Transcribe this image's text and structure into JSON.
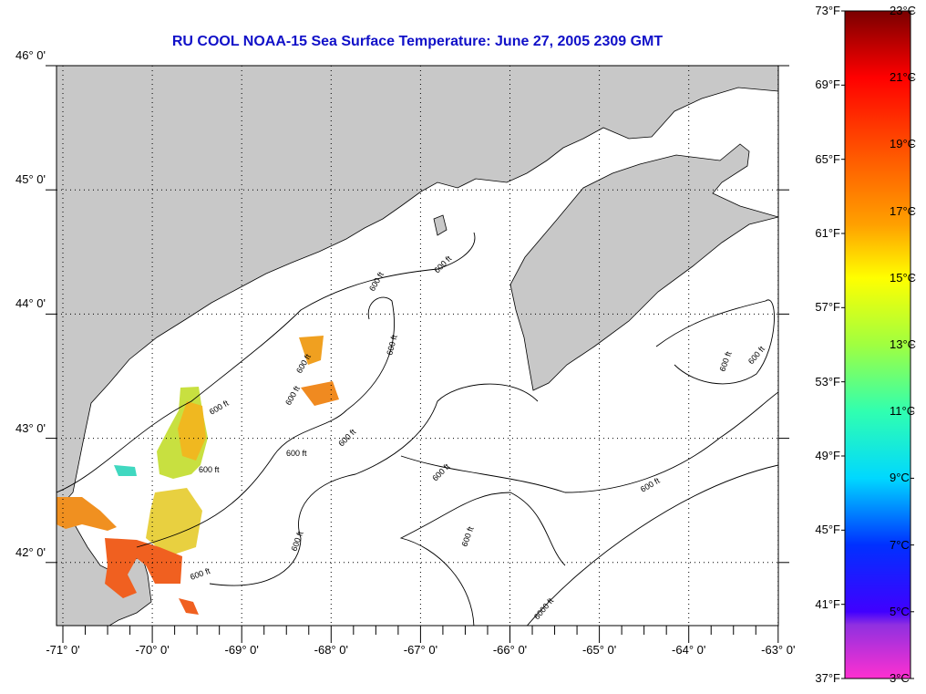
{
  "title": "RU COOL  NOAA-15  Sea Surface Temperature:  June 27, 2005 2309 GMT",
  "map": {
    "lon_range": [
      -71.1,
      -63
    ],
    "lat_range": [
      41.5,
      46.1
    ],
    "lon_ticks": [
      -71,
      -70,
      -69,
      -68,
      -67,
      -66,
      -65,
      -64,
      -63
    ],
    "lon_labels": [
      "-71° 0'",
      "-70° 0'",
      "-69° 0'",
      "-68° 0'",
      "-67° 0'",
      "-66° 0'",
      "-65° 0'",
      "-64° 0'",
      "-63° 0'"
    ],
    "lat_ticks": [
      46,
      45,
      44,
      43,
      42
    ],
    "lat_labels": [
      "46° 0'",
      "45° 0'",
      "44° 0'",
      "43° 0'",
      "42° 0'"
    ],
    "contour_labels": [
      "600 ft",
      "600 ft",
      "600 ft",
      "600 ft",
      "600 ft",
      "600 ft",
      "600 ft",
      "600 ft",
      "600 ft",
      "600 ft",
      "600 ft",
      "600 ft",
      "600 ft",
      "600 ft",
      "6000 ft"
    ],
    "land_color": "#c8c8c8"
  },
  "colorbar": {
    "f_labels": [
      "73°F",
      "69°F",
      "65°F",
      "61°F",
      "57°F",
      "53°F",
      "49°F",
      "45°F",
      "41°F",
      "37°F"
    ],
    "c_labels": [
      "23°C",
      "21°C",
      "19°C",
      "17°C",
      "15°C",
      "13°C",
      "11°C",
      "9°C",
      "7°C",
      "5°C",
      "3°C"
    ],
    "range_c": [
      3,
      23
    ]
  }
}
